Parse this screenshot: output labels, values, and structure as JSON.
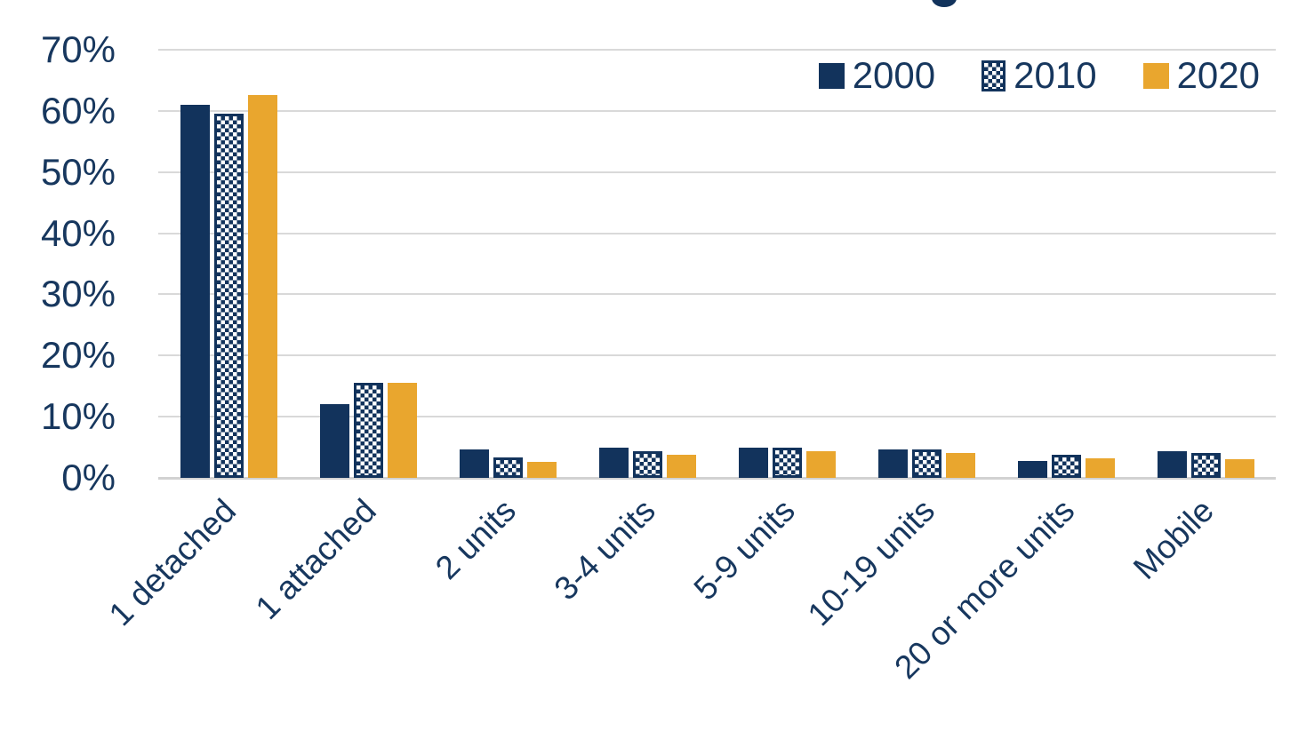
{
  "colors": {
    "navy": "#12335C",
    "gold": "#E9A62E",
    "text": "#17375E",
    "gridline": "#D9D9D9",
    "axisline": "#D2D2D2"
  },
  "chart_data": {
    "type": "bar",
    "title": "",
    "categories": [
      "1 detached",
      "1 attached",
      "2 units",
      "3-4 units",
      "5-9 units",
      "10-19 units",
      "20 or more units",
      "Mobile"
    ],
    "series": [
      {
        "name": "2000",
        "fill": "solid",
        "color_key": "navy",
        "values": [
          61.0,
          12.0,
          4.7,
          5.0,
          4.9,
          4.6,
          2.7,
          4.4
        ]
      },
      {
        "name": "2010",
        "fill": "checker",
        "color_key": "navy",
        "values": [
          59.5,
          15.6,
          3.3,
          4.4,
          4.9,
          4.6,
          3.8,
          4.1
        ]
      },
      {
        "name": "2020",
        "fill": "solid",
        "color_key": "gold",
        "values": [
          62.6,
          15.6,
          2.6,
          3.8,
          4.4,
          4.1,
          3.2,
          3.1
        ]
      }
    ],
    "xlabel": "",
    "ylabel": "",
    "ylim": [
      0,
      70
    ],
    "ytick_step": 10,
    "yticks": [
      "0%",
      "10%",
      "20%",
      "30%",
      "40%",
      "50%",
      "60%",
      "70%"
    ],
    "grid": true,
    "legend_position": "top-right"
  }
}
